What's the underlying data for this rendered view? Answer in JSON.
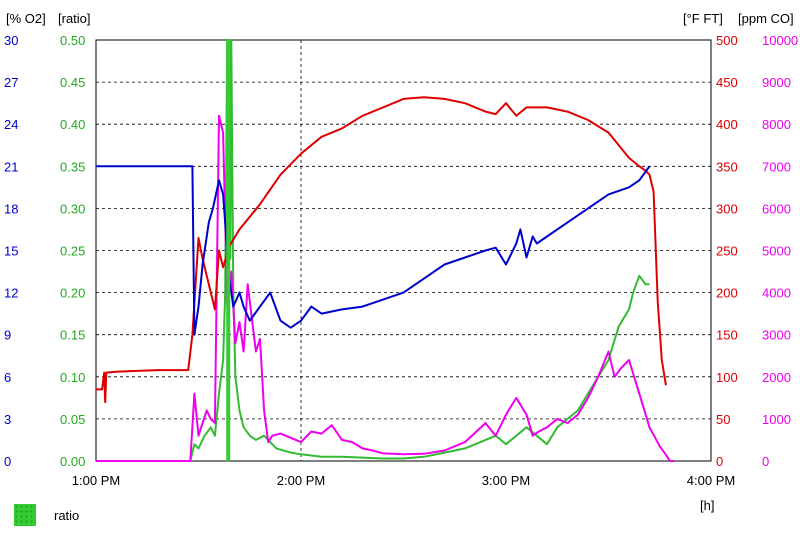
{
  "chart_data": {
    "type": "line",
    "xlabel": "[h]",
    "x_ticks": [
      "1:00 PM",
      "2:00 PM",
      "3:00 PM",
      "4:00 PM"
    ],
    "xlim": [
      13.0,
      16.0
    ],
    "axes": {
      "o2": {
        "label": "[% O2]",
        "color": "#0000cc",
        "ylim": [
          0,
          30
        ],
        "ticks": [
          "0",
          "3",
          "6",
          "9",
          "12",
          "15",
          "18",
          "21",
          "24",
          "27",
          "30"
        ]
      },
      "ratio": {
        "label": "[ratio]",
        "color": "#22aa22",
        "ylim": [
          0,
          0.5
        ],
        "ticks": [
          "0.00",
          "0.05",
          "0.10",
          "0.15",
          "0.20",
          "0.25",
          "0.30",
          "0.35",
          "0.40",
          "0.45",
          "0.50"
        ]
      },
      "ft": {
        "label": "[°F FT]",
        "color": "#dd0000",
        "ylim": [
          0,
          500
        ],
        "ticks": [
          "0",
          "50",
          "100",
          "150",
          "200",
          "250",
          "300",
          "350",
          "400",
          "450",
          "500"
        ]
      },
      "co": {
        "label": "[ppm CO]",
        "color": "#ee00ee",
        "ylim": [
          0,
          10000
        ],
        "ticks": [
          "0",
          "1000",
          "2000",
          "3000",
          "4000",
          "5000",
          "6000",
          "7000",
          "8000",
          "9000",
          "10000"
        ]
      }
    },
    "grid_y": "dashed",
    "grid_x_at": "2:00 PM",
    "series": [
      {
        "name": "ratio",
        "axis": "ratio",
        "color": "#33bb33",
        "x": [
          13.0,
          13.46,
          13.48,
          13.5,
          13.53,
          13.56,
          13.58,
          13.6,
          13.62,
          13.63,
          13.64,
          13.65,
          13.655,
          13.66,
          13.67,
          13.68,
          13.7,
          13.72,
          13.75,
          13.78,
          13.82,
          13.88,
          13.95,
          14.0,
          14.1,
          14.2,
          14.3,
          14.4,
          14.5,
          14.6,
          14.7,
          14.8,
          14.9,
          14.95,
          15.0,
          15.05,
          15.1,
          15.15,
          15.2,
          15.25,
          15.3,
          15.35,
          15.4,
          15.45,
          15.5,
          15.55,
          15.6,
          15.62,
          15.65,
          15.68,
          15.7
        ],
        "y": [
          0.0,
          0.0,
          0.02,
          0.015,
          0.03,
          0.04,
          0.03,
          0.08,
          0.12,
          0.2,
          0.5,
          0.5,
          0.24,
          0.5,
          0.2,
          0.1,
          0.06,
          0.04,
          0.03,
          0.025,
          0.03,
          0.015,
          0.01,
          0.008,
          0.005,
          0.005,
          0.004,
          0.003,
          0.003,
          0.005,
          0.01,
          0.015,
          0.025,
          0.03,
          0.02,
          0.03,
          0.04,
          0.03,
          0.02,
          0.04,
          0.05,
          0.06,
          0.08,
          0.1,
          0.12,
          0.16,
          0.18,
          0.2,
          0.22,
          0.21,
          0.21
        ]
      },
      {
        "name": "CO",
        "axis": "co",
        "color": "#ee00ee",
        "x": [
          13.0,
          13.46,
          13.48,
          13.5,
          13.52,
          13.54,
          13.56,
          13.58,
          13.6,
          13.62,
          13.64,
          13.66,
          13.68,
          13.7,
          13.72,
          13.74,
          13.76,
          13.78,
          13.8,
          13.82,
          13.84,
          13.86,
          13.9,
          13.95,
          14.0,
          14.05,
          14.1,
          14.15,
          14.2,
          14.25,
          14.3,
          14.35,
          14.4,
          14.5,
          14.6,
          14.7,
          14.8,
          14.9,
          14.95,
          15.0,
          15.05,
          15.1,
          15.13,
          15.16,
          15.2,
          15.25,
          15.3,
          15.35,
          15.4,
          15.45,
          15.5,
          15.53,
          15.56,
          15.6,
          15.65,
          15.7,
          15.75,
          15.78,
          15.8,
          15.82
        ],
        "y": [
          0,
          0,
          1600,
          600,
          900,
          1200,
          1000,
          900,
          8200,
          7800,
          3700,
          4500,
          2800,
          3300,
          2600,
          4200,
          3400,
          2600,
          2900,
          1200,
          450,
          600,
          650,
          550,
          450,
          700,
          650,
          850,
          500,
          450,
          300,
          250,
          180,
          160,
          170,
          250,
          450,
          900,
          600,
          1100,
          1500,
          1100,
          600,
          700,
          800,
          1000,
          900,
          1100,
          1500,
          2000,
          2600,
          2000,
          2200,
          2400,
          1600,
          800,
          350,
          150,
          0,
          0
        ]
      },
      {
        "name": "FT",
        "axis": "ft",
        "color": "#dd0000",
        "x": [
          13.0,
          13.03,
          13.04,
          13.045,
          13.05,
          13.1,
          13.2,
          13.3,
          13.45,
          13.47,
          13.5,
          13.52,
          13.55,
          13.58,
          13.6,
          13.62,
          13.65,
          13.7,
          13.75,
          13.8,
          13.9,
          14.0,
          14.1,
          14.2,
          14.3,
          14.4,
          14.5,
          14.6,
          14.7,
          14.8,
          14.9,
          14.95,
          15.0,
          15.05,
          15.1,
          15.2,
          15.3,
          15.4,
          15.5,
          15.55,
          15.6,
          15.65,
          15.68,
          15.7,
          15.72,
          15.74,
          15.76,
          15.78
        ],
        "y": [
          85,
          85,
          105,
          70,
          105,
          106,
          107,
          108,
          108,
          150,
          265,
          240,
          210,
          180,
          250,
          230,
          255,
          275,
          290,
          305,
          340,
          365,
          385,
          395,
          410,
          420,
          430,
          432,
          430,
          425,
          415,
          412,
          425,
          410,
          420,
          420,
          415,
          405,
          390,
          375,
          360,
          350,
          345,
          340,
          320,
          190,
          120,
          90
        ]
      },
      {
        "name": "O2",
        "axis": "o2",
        "color": "#0000cc",
        "x": [
          13.0,
          13.3,
          13.45,
          13.47,
          13.48,
          13.5,
          13.52,
          13.55,
          13.57,
          13.6,
          13.62,
          13.65,
          13.67,
          13.7,
          13.72,
          13.75,
          13.8,
          13.85,
          13.9,
          13.95,
          14.0,
          14.05,
          14.1,
          14.2,
          14.3,
          14.4,
          14.5,
          14.6,
          14.7,
          14.8,
          14.9,
          14.95,
          15.0,
          15.05,
          15.07,
          15.1,
          15.13,
          15.15,
          15.2,
          15.3,
          15.4,
          15.5,
          15.6,
          15.65,
          15.7
        ],
        "y": [
          21,
          21,
          21,
          21,
          9,
          11,
          14,
          17,
          18,
          20,
          19,
          13,
          11,
          12,
          11,
          10,
          11,
          12,
          10,
          9.5,
          10,
          11,
          10.5,
          10.8,
          11,
          11.5,
          12,
          13,
          14,
          14.5,
          15,
          15.2,
          14,
          15.5,
          16.5,
          14.5,
          16,
          15.5,
          16,
          17,
          18,
          19,
          19.5,
          20,
          21
        ]
      }
    ],
    "legend": [
      {
        "label": "ratio",
        "color": "#33cc33"
      }
    ],
    "legend_position": "bottom-left"
  }
}
